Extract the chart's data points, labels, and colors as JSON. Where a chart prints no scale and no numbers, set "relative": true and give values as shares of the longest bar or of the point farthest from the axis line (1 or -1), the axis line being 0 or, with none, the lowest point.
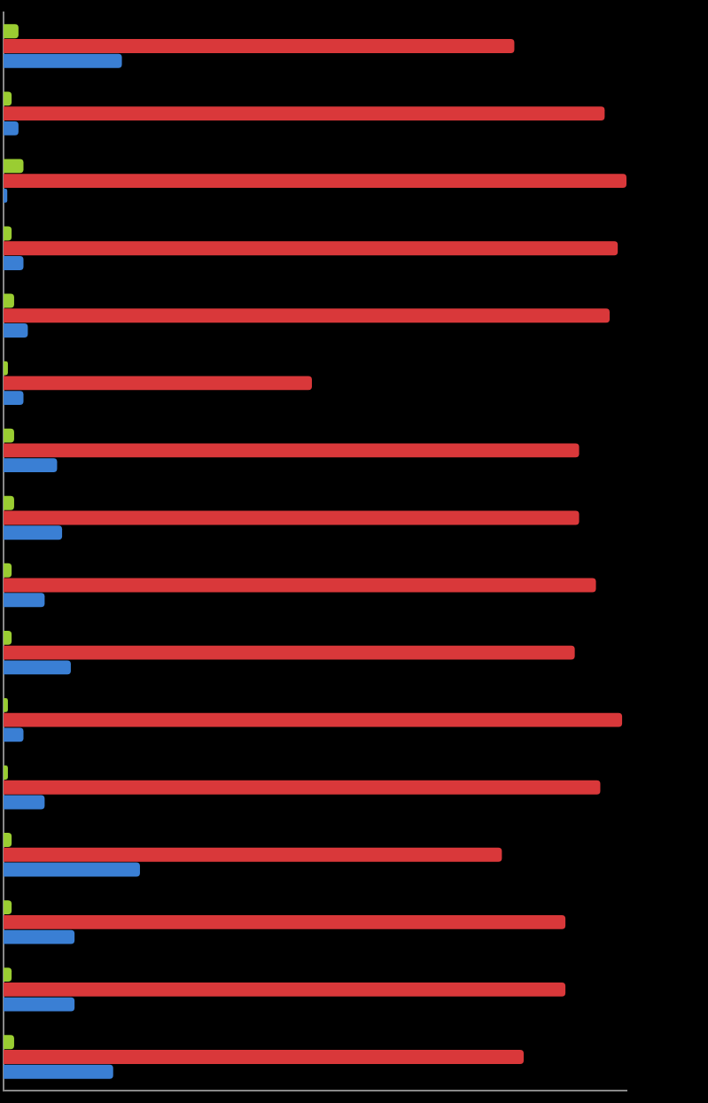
{
  "chart_data": {
    "type": "bar",
    "orientation": "horizontal",
    "relative": true,
    "grid": false,
    "legend": false,
    "categories": [
      null,
      null,
      null,
      null,
      null,
      null,
      null,
      null,
      null,
      null,
      null,
      null,
      null,
      null,
      null,
      null
    ],
    "series": [
      {
        "color": "#9acd32",
        "values": [
          0.024,
          0.013,
          0.032,
          0.013,
          0.017,
          0.007,
          0.017,
          0.017,
          0.013,
          0.013,
          0.007,
          0.007,
          0.013,
          0.013,
          0.013,
          0.017
        ]
      },
      {
        "color": "#d9383a",
        "values": [
          0.82,
          0.965,
          1,
          0.986,
          0.973,
          0.495,
          0.924,
          0.924,
          0.951,
          0.917,
          0.993,
          0.958,
          0.8,
          0.902,
          0.902,
          0.835
        ]
      },
      {
        "color": "#3a7fd4",
        "values": [
          0.19,
          0.024,
          0.006,
          0.032,
          0.039,
          0.032,
          0.086,
          0.094,
          0.066,
          0.108,
          0.032,
          0.066,
          0.219,
          0.114,
          0.114,
          0.176
        ]
      }
    ]
  }
}
